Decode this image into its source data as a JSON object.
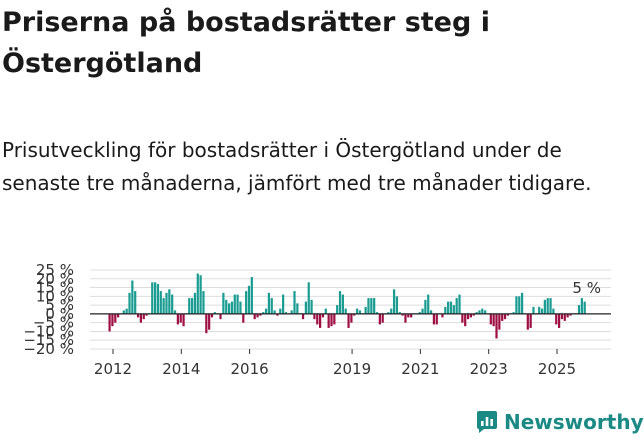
{
  "title": "Priserna på bostadsrätter steg i Östergötland",
  "subtitle": "Prisutveckling för bostadsrätter i Östergötland under de senaste tre månaderna, jämfört med tre månader tidigare.",
  "brand": {
    "name": "Newsworthy",
    "color": "#1b8a85"
  },
  "colors": {
    "positive": "#1a9c92",
    "negative": "#9e0f44",
    "grid": "#dddddd",
    "zero": "#222222"
  },
  "chart_data": {
    "type": "bar",
    "title": "Priserna på bostadsrätter steg i Östergötland",
    "xlabel": "",
    "ylabel": "",
    "ylim": [
      -20,
      25
    ],
    "y_ticks": [
      -20,
      -15,
      -10,
      -5,
      0,
      5,
      10,
      15,
      20,
      25
    ],
    "y_tick_labels": [
      "−20 %",
      "−15 %",
      "−10 %",
      "−5 %",
      "0 %",
      "5 %",
      "10 %",
      "15 %",
      "20 %",
      "25 %"
    ],
    "x_ticks": [
      2012,
      2014,
      2016,
      2019,
      2021,
      2023,
      2025
    ],
    "x_tick_labels": [
      "2012",
      "2014",
      "2016",
      "2019",
      "2021",
      "2023",
      "2025"
    ],
    "x_start": 2011.9,
    "step": 0.0833,
    "grid": true,
    "legend": "none",
    "annotation": {
      "label": "5 %",
      "value": 5
    },
    "values": [
      -10,
      -7,
      -5,
      -2,
      0,
      2,
      3,
      12,
      19,
      13,
      -2,
      -5,
      -3,
      -1,
      0,
      18,
      18,
      17,
      13,
      9,
      12,
      14,
      11,
      2,
      -6,
      -5,
      -7,
      0,
      9,
      9,
      12,
      23,
      22,
      13,
      -11,
      -9,
      -2,
      1,
      0,
      -3,
      12,
      8,
      6,
      7,
      11,
      11,
      7,
      -5,
      13,
      16,
      21,
      -3,
      -2,
      -1,
      1,
      3,
      12,
      9,
      2,
      -1,
      3,
      11,
      1,
      0,
      2,
      13,
      6,
      0,
      -3,
      7,
      18,
      8,
      -3,
      -6,
      -8,
      -2,
      3,
      -8,
      -7,
      -6,
      5,
      13,
      11,
      3,
      -8,
      -5,
      -1,
      3,
      2,
      0,
      4,
      9,
      9,
      9,
      1,
      -6,
      -5,
      0,
      1,
      3,
      14,
      10,
      1,
      -1,
      -5,
      -2,
      -2,
      0,
      0,
      1,
      3,
      8,
      11,
      2,
      -6,
      -6,
      0,
      -2,
      4,
      7,
      7,
      5,
      9,
      11,
      -5,
      -7,
      -3,
      -2,
      -1,
      1,
      2,
      3,
      2,
      0,
      -6,
      -7,
      -14,
      -9,
      -4,
      -3,
      -1,
      0,
      1,
      10,
      10,
      12,
      0,
      -9,
      -8,
      4,
      0,
      4,
      3,
      8,
      9,
      9,
      3,
      -6,
      -8,
      -3,
      -4,
      -2,
      -1,
      0,
      0,
      5,
      9,
      7
    ]
  }
}
